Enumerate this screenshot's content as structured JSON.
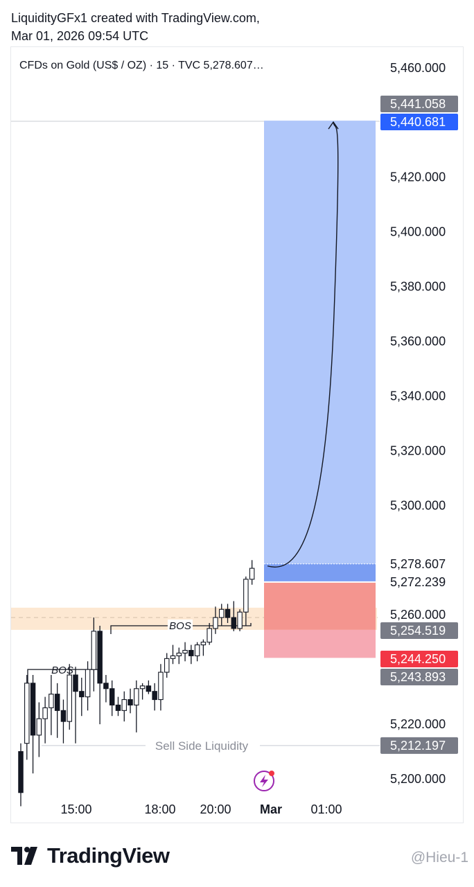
{
  "header": {
    "line1": "LiquidityGFx1 created with TradingView.com,",
    "line2": "Mar 01, 2026 09:54 UTC"
  },
  "symbol_title": "CFDs on Gold (US$ / OZ) · 15 · TVC  5,278.607…",
  "footer": {
    "logo_text": "TradingView",
    "watermark": "@Hieu-1"
  },
  "colors": {
    "candle_border": "#131722",
    "up_fill": "#ffffff",
    "down_fill": "#131722",
    "target_zone": "#b0c7fa",
    "entry_band": "#7a9df2",
    "stop_zone": "#f6a9b3",
    "stop_zone_upper": "#f4958f",
    "supply_zone": "#fde8d2",
    "price_tag_grey": "#787b86",
    "price_tag_blue": "#2962ff",
    "price_tag_red": "#f23645",
    "axis_text": "#131722"
  },
  "chart_data": {
    "type": "candlestick",
    "title": "CFDs on Gold (US$ / OZ) · 15 · TVC",
    "ylim": [
      5195,
      5475
    ],
    "y_ticks": [
      "5,460.000",
      "5,420.000",
      "5,400.000",
      "5,380.000",
      "5,360.000",
      "5,340.000",
      "5,320.000",
      "5,300.000",
      "5,260.000",
      "5,220.000",
      "5,200.000"
    ],
    "x_ticks": [
      "15:00",
      "18:00",
      "20:00",
      "Mar",
      "01:00"
    ],
    "price_labels": [
      {
        "text": "5,441.058",
        "value": 5441.058,
        "style": "grey"
      },
      {
        "text": "5,440.681",
        "value": 5440.681,
        "style": "blue"
      },
      {
        "text": "5,278.607",
        "value": 5278.607,
        "style": "plain"
      },
      {
        "text": "5,272.239",
        "value": 5272.239,
        "style": "plain"
      },
      {
        "text": "5,254.519",
        "value": 5254.519,
        "style": "grey"
      },
      {
        "text": "5,244.250",
        "value": 5244.25,
        "style": "red"
      },
      {
        "text": "5,243.893",
        "value": 5243.893,
        "style": "grey"
      },
      {
        "text": "5,212.197",
        "value": 5212.197,
        "style": "grey"
      }
    ],
    "candles": [
      {
        "o": 5210,
        "h": 5213,
        "l": 5190,
        "c": 5195
      },
      {
        "o": 5213,
        "h": 5238,
        "l": 5207,
        "c": 5235
      },
      {
        "o": 5235,
        "h": 5238,
        "l": 5202,
        "c": 5216
      },
      {
        "o": 5216,
        "h": 5228,
        "l": 5208,
        "c": 5222
      },
      {
        "o": 5222,
        "h": 5230,
        "l": 5213,
        "c": 5226
      },
      {
        "o": 5226,
        "h": 5238,
        "l": 5216,
        "c": 5231
      },
      {
        "o": 5231,
        "h": 5235,
        "l": 5215,
        "c": 5225
      },
      {
        "o": 5225,
        "h": 5229,
        "l": 5213,
        "c": 5221
      },
      {
        "o": 5221,
        "h": 5242,
        "l": 5218,
        "c": 5238
      },
      {
        "o": 5238,
        "h": 5241,
        "l": 5213,
        "c": 5232
      },
      {
        "o": 5232,
        "h": 5237,
        "l": 5223,
        "c": 5230
      },
      {
        "o": 5230,
        "h": 5243,
        "l": 5225,
        "c": 5240
      },
      {
        "o": 5240,
        "h": 5259,
        "l": 5232,
        "c": 5254
      },
      {
        "o": 5254,
        "h": 5256,
        "l": 5220,
        "c": 5235
      },
      {
        "o": 5235,
        "h": 5238,
        "l": 5228,
        "c": 5233
      },
      {
        "o": 5233,
        "h": 5236,
        "l": 5223,
        "c": 5227
      },
      {
        "o": 5227,
        "h": 5230,
        "l": 5223,
        "c": 5225
      },
      {
        "o": 5225,
        "h": 5232,
        "l": 5221,
        "c": 5229
      },
      {
        "o": 5229,
        "h": 5233,
        "l": 5224,
        "c": 5227
      },
      {
        "o": 5227,
        "h": 5236,
        "l": 5217,
        "c": 5233
      },
      {
        "o": 5233,
        "h": 5235,
        "l": 5229,
        "c": 5234
      },
      {
        "o": 5234,
        "h": 5236,
        "l": 5231,
        "c": 5232
      },
      {
        "o": 5232,
        "h": 5235,
        "l": 5225,
        "c": 5229
      },
      {
        "o": 5229,
        "h": 5242,
        "l": 5225,
        "c": 5239
      },
      {
        "o": 5239,
        "h": 5246,
        "l": 5237,
        "c": 5244
      },
      {
        "o": 5244,
        "h": 5249,
        "l": 5242,
        "c": 5245
      },
      {
        "o": 5245,
        "h": 5248,
        "l": 5242,
        "c": 5246
      },
      {
        "o": 5246,
        "h": 5250,
        "l": 5243,
        "c": 5247
      },
      {
        "o": 5247,
        "h": 5249,
        "l": 5242,
        "c": 5245
      },
      {
        "o": 5245,
        "h": 5250,
        "l": 5243,
        "c": 5249
      },
      {
        "o": 5249,
        "h": 5251,
        "l": 5245,
        "c": 5250
      },
      {
        "o": 5250,
        "h": 5257,
        "l": 5249,
        "c": 5255
      },
      {
        "o": 5255,
        "h": 5263,
        "l": 5253,
        "c": 5259
      },
      {
        "o": 5259,
        "h": 5264,
        "l": 5256,
        "c": 5262
      },
      {
        "o": 5262,
        "h": 5264,
        "l": 5257,
        "c": 5259
      },
      {
        "o": 5259,
        "h": 5265,
        "l": 5254,
        "c": 5255
      },
      {
        "o": 5255,
        "h": 5262,
        "l": 5254,
        "c": 5261
      },
      {
        "o": 5261,
        "h": 5274,
        "l": 5256,
        "c": 5273
      },
      {
        "o": 5273,
        "h": 5280,
        "l": 5271,
        "c": 5277
      }
    ],
    "annotations": [
      {
        "kind": "bos",
        "label": "BOS",
        "price": 5240
      },
      {
        "kind": "bos",
        "label": "BOS",
        "price": 5256
      },
      {
        "kind": "line",
        "label": "Sell Side Liquidity",
        "price": 5212.197
      },
      {
        "kind": "long_position",
        "entry": 5272.239,
        "target": 5440.681,
        "stop": 5244.25,
        "upper_stop_bound": 5272.239
      }
    ]
  }
}
